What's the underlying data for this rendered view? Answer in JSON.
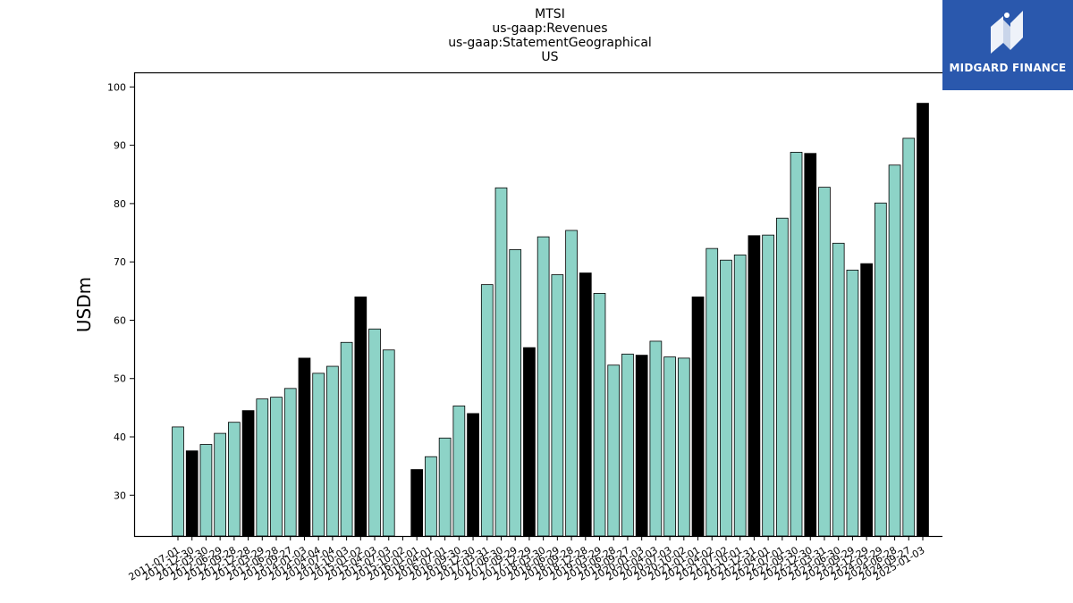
{
  "chart_data": {
    "type": "bar",
    "title": [
      "MTSI",
      "us-gaap:Revenues",
      "us-gaap:StatementGeographical",
      "US"
    ],
    "xlabel": "",
    "ylabel": "USDm",
    "ylim": [
      23,
      102.5
    ],
    "yticks": [
      30,
      40,
      50,
      60,
      70,
      80,
      90,
      100
    ],
    "grid": false,
    "colors": {
      "regular": "#8dd3c7",
      "highlight": "#000000",
      "edge": "#000000"
    },
    "categories": [
      "2011-07-01",
      "2011-12-30",
      "2012-03-30",
      "2012-06-29",
      "2012-09-28",
      "2012-12-28",
      "2013-03-29",
      "2013-06-28",
      "2013-09-27",
      "2014-01-03",
      "2014-04-04",
      "2014-07-04",
      "2014-10-03",
      "2015-01-02",
      "2015-04-03",
      "2015-07-03",
      "2015-10-02",
      "2016-01-01",
      "2016-04-01",
      "2016-07-01",
      "2016-09-30",
      "2016-12-30",
      "2017-03-31",
      "2017-06-30",
      "2017-09-29",
      "2017-12-29",
      "2018-03-30",
      "2018-06-29",
      "2018-09-28",
      "2018-12-28",
      "2019-03-29",
      "2019-06-28",
      "2019-09-27",
      "2020-01-03",
      "2020-04-03",
      "2020-07-03",
      "2020-10-02",
      "2021-01-01",
      "2021-04-02",
      "2021-07-02",
      "2021-10-01",
      "2021-12-31",
      "2022-04-01",
      "2022-07-01",
      "2022-09-30",
      "2022-12-30",
      "2023-03-31",
      "2023-06-30",
      "2023-09-29",
      "2023-12-29",
      "2024-03-29",
      "2024-06-28",
      "2024-09-27",
      "2025-01-03"
    ],
    "values": [
      41.7,
      37.6,
      38.7,
      40.6,
      42.5,
      44.5,
      46.5,
      46.8,
      48.3,
      53.5,
      50.9,
      52.1,
      56.2,
      64.0,
      58.5,
      54.9,
      null,
      34.4,
      36.6,
      39.8,
      45.3,
      44.0,
      66.1,
      82.7,
      72.1,
      55.3,
      74.3,
      67.8,
      75.4,
      68.1,
      64.6,
      52.3,
      54.2,
      54.0,
      56.4,
      53.7,
      53.5,
      64.0,
      72.3,
      70.3,
      71.2,
      74.5,
      74.6,
      77.5,
      88.8,
      88.6,
      82.8,
      73.2,
      68.6,
      69.7,
      80.1,
      86.6,
      91.2,
      97.2
    ],
    "highlight": [
      false,
      true,
      false,
      false,
      false,
      true,
      false,
      false,
      false,
      true,
      false,
      false,
      false,
      true,
      false,
      false,
      false,
      true,
      false,
      false,
      false,
      true,
      false,
      false,
      false,
      true,
      false,
      false,
      false,
      true,
      false,
      false,
      false,
      true,
      false,
      false,
      false,
      true,
      false,
      false,
      false,
      true,
      false,
      false,
      false,
      true,
      false,
      false,
      false,
      true,
      false,
      false,
      false,
      true
    ]
  },
  "logo": {
    "text": "MIDGARD FINANCE",
    "icon": "midgard-logo-icon"
  }
}
